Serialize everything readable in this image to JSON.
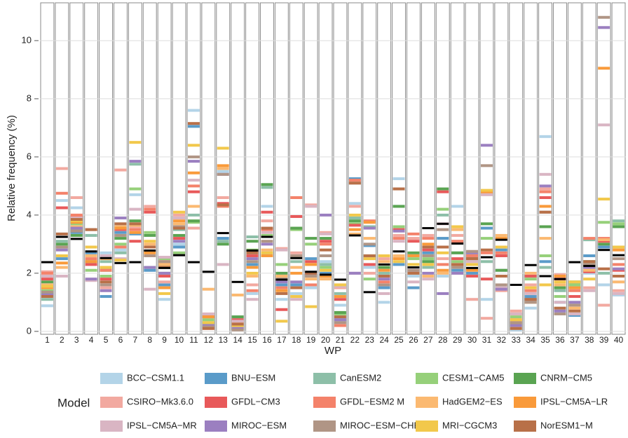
{
  "chart_data": {
    "type": "strip",
    "x_title": "WP",
    "y_title": "Relative frequency (%)",
    "legend_title": "Model",
    "categories": [
      "1",
      "2",
      "3",
      "4",
      "5",
      "6",
      "7",
      "8",
      "9",
      "10",
      "11",
      "12",
      "13",
      "14",
      "15",
      "16",
      "17",
      "18",
      "19",
      "20",
      "21",
      "22",
      "23",
      "24",
      "25",
      "26",
      "27",
      "28",
      "29",
      "30",
      "31",
      "32",
      "33",
      "34",
      "35",
      "36",
      "37",
      "38",
      "39",
      "40"
    ],
    "ylim": [
      -0.1,
      11.3
    ],
    "yticks": [
      0,
      2,
      4,
      6,
      8,
      10
    ],
    "grid": true,
    "reference": {
      "color": "#000000",
      "values": [
        2.38,
        3.25,
        3.18,
        2.75,
        2.52,
        2.35,
        2.38,
        2.78,
        2.18,
        2.62,
        2.38,
        2.05,
        3.38,
        1.7,
        2.78,
        3.25,
        1.78,
        2.52,
        2.05,
        1.95,
        1.78,
        3.3,
        1.35,
        2.3,
        2.75,
        2.2,
        3.55,
        3.7,
        3.02,
        2.18,
        2.55,
        3.15,
        1.6,
        2.28,
        1.9,
        1.8,
        2.38,
        2.25,
        2.8,
        2.62
      ]
    },
    "series": [
      {
        "name": "BCC−CSM1.1",
        "color": "#b3d4e8",
        "values": [
          0.88,
          4.5,
          4.25,
          3.3,
          2.7,
          2.8,
          4.7,
          2.1,
          1.1,
          3.0,
          7.6,
          0.3,
          5.5,
          0.5,
          1.3,
          4.3,
          1.1,
          1.3,
          1.5,
          2.4,
          0.9,
          4.4,
          2.2,
          1.0,
          5.25,
          1.9,
          2.4,
          1.9,
          4.3,
          1.9,
          1.1,
          1.5,
          0.05,
          0.8,
          6.7,
          0.7,
          1.0,
          2.0,
          1.6,
          1.25
        ]
      },
      {
        "name": "BNU−ESM",
        "color": "#5a9bc9",
        "values": [
          1.3,
          2.5,
          3.4,
          2.7,
          1.2,
          3.4,
          3.35,
          2.1,
          1.6,
          2.9,
          7.05,
          0.2,
          3.2,
          0.2,
          2.3,
          2.7,
          1.6,
          1.6,
          2.5,
          2.0,
          0.4,
          5.25,
          2.95,
          1.5,
          2.3,
          1.5,
          2.7,
          3.2,
          2.1,
          2.0,
          3.55,
          2.8,
          0.3,
          1.2,
          2.4,
          1.0,
          0.55,
          2.6,
          2.9,
          2.9
        ]
      },
      {
        "name": "CanESM2",
        "color": "#8dbfa8",
        "values": [
          1.1,
          3.1,
          3.5,
          3.3,
          2.4,
          2.7,
          5.75,
          2.2,
          2.0,
          3.5,
          4.0,
          0.5,
          3.1,
          0.4,
          3.25,
          4.95,
          1.9,
          2.4,
          1.9,
          2.3,
          1.3,
          3.9,
          3.6,
          2.0,
          4.3,
          2.3,
          2.2,
          4.0,
          2.7,
          2.6,
          2.4,
          2.1,
          0.6,
          1.9,
          2.2,
          1.4,
          1.5,
          3.15,
          2.0,
          3.8
        ]
      },
      {
        "name": "CESM1−CAM5",
        "color": "#96d07a",
        "values": [
          1.4,
          2.9,
          3.7,
          2.1,
          1.9,
          3.0,
          4.9,
          3.4,
          2.5,
          2.7,
          3.75,
          0.4,
          4.35,
          0.1,
          2.8,
          3.3,
          2.3,
          3.5,
          3.0,
          2.2,
          0.6,
          3.7,
          1.8,
          2.2,
          3.6,
          2.5,
          2.5,
          4.2,
          2.4,
          2.7,
          3.2,
          2.6,
          0.5,
          1.8,
          2.6,
          1.2,
          1.6,
          2.2,
          3.75,
          3.7
        ]
      },
      {
        "name": "CNRM−CM5",
        "color": "#5aa452",
        "values": [
          1.7,
          3.0,
          3.3,
          2.4,
          2.1,
          3.2,
          3.8,
          3.3,
          2.3,
          3.3,
          3.8,
          0.3,
          3.0,
          0.5,
          3.1,
          5.05,
          2.0,
          3.55,
          3.2,
          3.2,
          0.65,
          3.8,
          2.6,
          2.2,
          4.3,
          2.7,
          2.4,
          4.9,
          2.7,
          2.5,
          3.7,
          2.1,
          0.2,
          1.1,
          3.6,
          1.5,
          1.7,
          2.4,
          3.0,
          3.6
        ]
      },
      {
        "name": "CSIRO−Mk3.6.0",
        "color": "#f2a9a0",
        "values": [
          2.05,
          5.6,
          4.6,
          2.6,
          1.5,
          5.55,
          3.6,
          4.3,
          1.7,
          4.0,
          3.55,
          0.6,
          4.6,
          0.3,
          1.6,
          3.8,
          2.85,
          2.7,
          4.35,
          3.4,
          1.5,
          4.3,
          2.0,
          2.5,
          3.3,
          3.2,
          3.3,
          2.5,
          3.3,
          1.1,
          0.45,
          1.4,
          0.7,
          1.6,
          4.9,
          1.95,
          0.9,
          1.5,
          0.9,
          1.4
        ]
      },
      {
        "name": "GFDL−CM3",
        "color": "#e8595a",
        "values": [
          1.8,
          4.25,
          3.95,
          2.3,
          1.8,
          3.5,
          3.1,
          4.1,
          1.9,
          3.2,
          4.8,
          0.5,
          4.4,
          0.4,
          2.6,
          4.1,
          0.75,
          3.95,
          2.4,
          3.1,
          1.1,
          3.65,
          2.3,
          1.6,
          3.5,
          3.1,
          2.8,
          4.8,
          2.5,
          1.9,
          1.8,
          2.6,
          0.4,
          1.9,
          4.6,
          1.8,
          1.2,
          2.05,
          3.1,
          2.1
        ]
      },
      {
        "name": "GFDL−ESM2 M",
        "color": "#f4826a",
        "values": [
          2.0,
          4.75,
          4.0,
          2.5,
          2.1,
          2.9,
          3.5,
          4.2,
          2.4,
          3.6,
          5.0,
          0.1,
          4.3,
          0.2,
          1.4,
          3.5,
          1.5,
          4.6,
          1.6,
          3.0,
          0.2,
          5.2,
          3.8,
          1.7,
          3.2,
          3.35,
          3.2,
          2.3,
          3.1,
          2.6,
          2.7,
          2.7,
          0.6,
          1.4,
          4.8,
          1.9,
          1.4,
          3.2,
          3.2,
          2.3
        ]
      },
      {
        "name": "HadGEM2−ES",
        "color": "#fbb971",
        "values": [
          1.6,
          2.2,
          3.6,
          2.6,
          2.5,
          3.6,
          3.65,
          3.0,
          2.3,
          3.7,
          4.3,
          1.45,
          5.6,
          1.25,
          1.9,
          2.8,
          1.9,
          2.2,
          1.8,
          1.8,
          1.6,
          3.35,
          3.2,
          2.4,
          2.6,
          2.0,
          1.9,
          2.0,
          3.5,
          2.3,
          4.75,
          3.3,
          0.1,
          2.0,
          3.2,
          1.6,
          0.8,
          2.1,
          3.15,
          1.7
        ]
      },
      {
        "name": "IPSL−CM5A−LR",
        "color": "#f99a3a",
        "values": [
          1.5,
          2.35,
          3.75,
          2.4,
          2.2,
          3.55,
          3.4,
          2.7,
          1.5,
          3.8,
          5.45,
          0.5,
          5.7,
          0.3,
          2.2,
          2.6,
          1.4,
          2.0,
          2.3,
          1.9,
          1.2,
          3.5,
          3.75,
          2.1,
          2.5,
          2.6,
          3.0,
          2.1,
          2.3,
          2.1,
          4.8,
          3.2,
          0.3,
          1.0,
          4.3,
          1.9,
          1.5,
          2.3,
          9.05,
          2.8
        ]
      },
      {
        "name": "IPSL−CM5A−MR",
        "color": "#d9b5c3",
        "values": [
          1.9,
          1.9,
          3.9,
          1.75,
          2.6,
          2.5,
          4.2,
          1.45,
          2.55,
          3.9,
          5.2,
          0.6,
          2.3,
          0.35,
          1.1,
          3.4,
          2.8,
          1.1,
          4.3,
          3.35,
          1.55,
          2.0,
          2.5,
          1.3,
          3.1,
          1.7,
          1.8,
          3.7,
          2.0,
          2.4,
          4.7,
          1.5,
          0.6,
          1.3,
          5.4,
          1.0,
          0.6,
          1.4,
          7.1,
          1.3
        ]
      },
      {
        "name": "MIROC−ESM",
        "color": "#9b7fc0",
        "values": [
          1.25,
          2.8,
          3.55,
          1.8,
          1.4,
          3.9,
          5.85,
          2.2,
          2.0,
          3.1,
          5.85,
          0.2,
          5.4,
          0.1,
          2.5,
          3.0,
          1.7,
          1.7,
          2.0,
          4.0,
          0.4,
          2.0,
          3.55,
          1.8,
          3.45,
          2.1,
          2.0,
          1.3,
          2.0,
          2.7,
          6.4,
          1.45,
          0.2,
          1.1,
          5.0,
          0.7,
          1.0,
          2.2,
          10.45,
          2.15
        ]
      },
      {
        "name": "MIROC−ESM−CHEM",
        "color": "#b09585",
        "values": [
          1.35,
          2.9,
          3.45,
          3.5,
          1.6,
          3.3,
          3.7,
          2.6,
          2.4,
          3.6,
          6.0,
          0.15,
          5.4,
          0.05,
          2.4,
          3.1,
          1.8,
          2.6,
          1.9,
          2.6,
          0.3,
          5.1,
          3.0,
          1.6,
          4.9,
          2.1,
          2.6,
          3.5,
          2.2,
          2.75,
          5.7,
          1.6,
          0.3,
          1.0,
          4.1,
          0.6,
          0.9,
          2.3,
          10.8,
          2.5
        ]
      },
      {
        "name": "MRI−CGCM3",
        "color": "#f2c84b",
        "values": [
          1.55,
          2.6,
          3.8,
          2.9,
          2.2,
          2.45,
          6.5,
          3.1,
          1.3,
          4.1,
          6.4,
          0.3,
          6.3,
          0.2,
          2.0,
          2.7,
          0.35,
          1.2,
          0.85,
          2.1,
          1.6,
          4.0,
          2.5,
          2.6,
          2.4,
          2.3,
          2.3,
          2.7,
          3.6,
          2.3,
          4.85,
          2.9,
          0.4,
          1.5,
          1.6,
          1.7,
          1.7,
          1.8,
          4.55,
          2.9
        ]
      },
      {
        "name": "NorESM1−M",
        "color": "#b87048",
        "values": [
          1.2,
          3.35,
          3.85,
          3.5,
          1.7,
          3.7,
          3.7,
          2.9,
          2.2,
          3.55,
          7.15,
          0.1,
          4.35,
          0.25,
          2.7,
          3.55,
          1.3,
          1.5,
          2.0,
          2.8,
          0.5,
          5.1,
          2.6,
          1.9,
          4.9,
          2.0,
          2.9,
          2.9,
          2.3,
          2.5,
          2.8,
          1.9,
          0.1,
          1.1,
          4.1,
          0.8,
          0.7,
          2.4,
          2.15,
          1.9
        ]
      }
    ]
  }
}
